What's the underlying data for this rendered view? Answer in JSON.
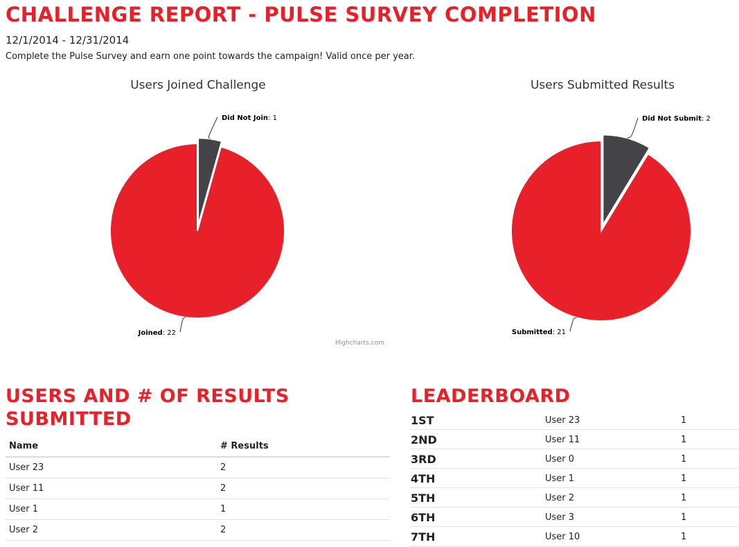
{
  "page": {
    "title": "CHALLENGE REPORT - PULSE SURVEY COMPLETION",
    "dates": "12/1/2014 - 12/31/2014",
    "description": "Complete the Pulse Survey and earn one point towards the campaign!  Valid once per year."
  },
  "colors": {
    "accent": "#e8202a",
    "dark": "#434348"
  },
  "charts": {
    "credits": "Highcharts.com"
  },
  "chart_data": [
    {
      "type": "pie",
      "title": "Users Joined Challenge",
      "slices": [
        {
          "name": "Did Not Join",
          "value": 1,
          "label_value": "1",
          "color": "#434348",
          "sliced": true
        },
        {
          "name": "Joined",
          "value": 22,
          "label_value": "22",
          "color": "#e8202a",
          "sliced": false
        }
      ]
    },
    {
      "type": "pie",
      "title": "Users Submitted Results",
      "slices": [
        {
          "name": "Did Not Submit",
          "value": 2,
          "label_value": "2",
          "color": "#434348",
          "sliced": true
        },
        {
          "name": "Submitted",
          "value": 21,
          "label_value": "21",
          "color": "#e8202a",
          "sliced": false
        }
      ]
    }
  ],
  "results": {
    "title_line1": "USERS AND # OF RESULTS",
    "title_line2": "SUBMITTED",
    "headers": {
      "name": "Name",
      "results": "# Results"
    },
    "rows": [
      {
        "name": "User 23",
        "results": "2"
      },
      {
        "name": "User 11",
        "results": "2"
      },
      {
        "name": "User 1",
        "results": "1"
      },
      {
        "name": "User 2",
        "results": "2"
      }
    ]
  },
  "leaderboard": {
    "title": "LEADERBOARD",
    "rows": [
      {
        "rank": "1ST",
        "user": "User 23",
        "score": "1"
      },
      {
        "rank": "2ND",
        "user": "User 11",
        "score": "1"
      },
      {
        "rank": "3RD",
        "user": "User 0",
        "score": "1"
      },
      {
        "rank": "4TH",
        "user": "User 1",
        "score": "1"
      },
      {
        "rank": "5TH",
        "user": "User 2",
        "score": "1"
      },
      {
        "rank": "6TH",
        "user": "User 3",
        "score": "1"
      },
      {
        "rank": "7TH",
        "user": "User 10",
        "score": "1"
      }
    ]
  }
}
